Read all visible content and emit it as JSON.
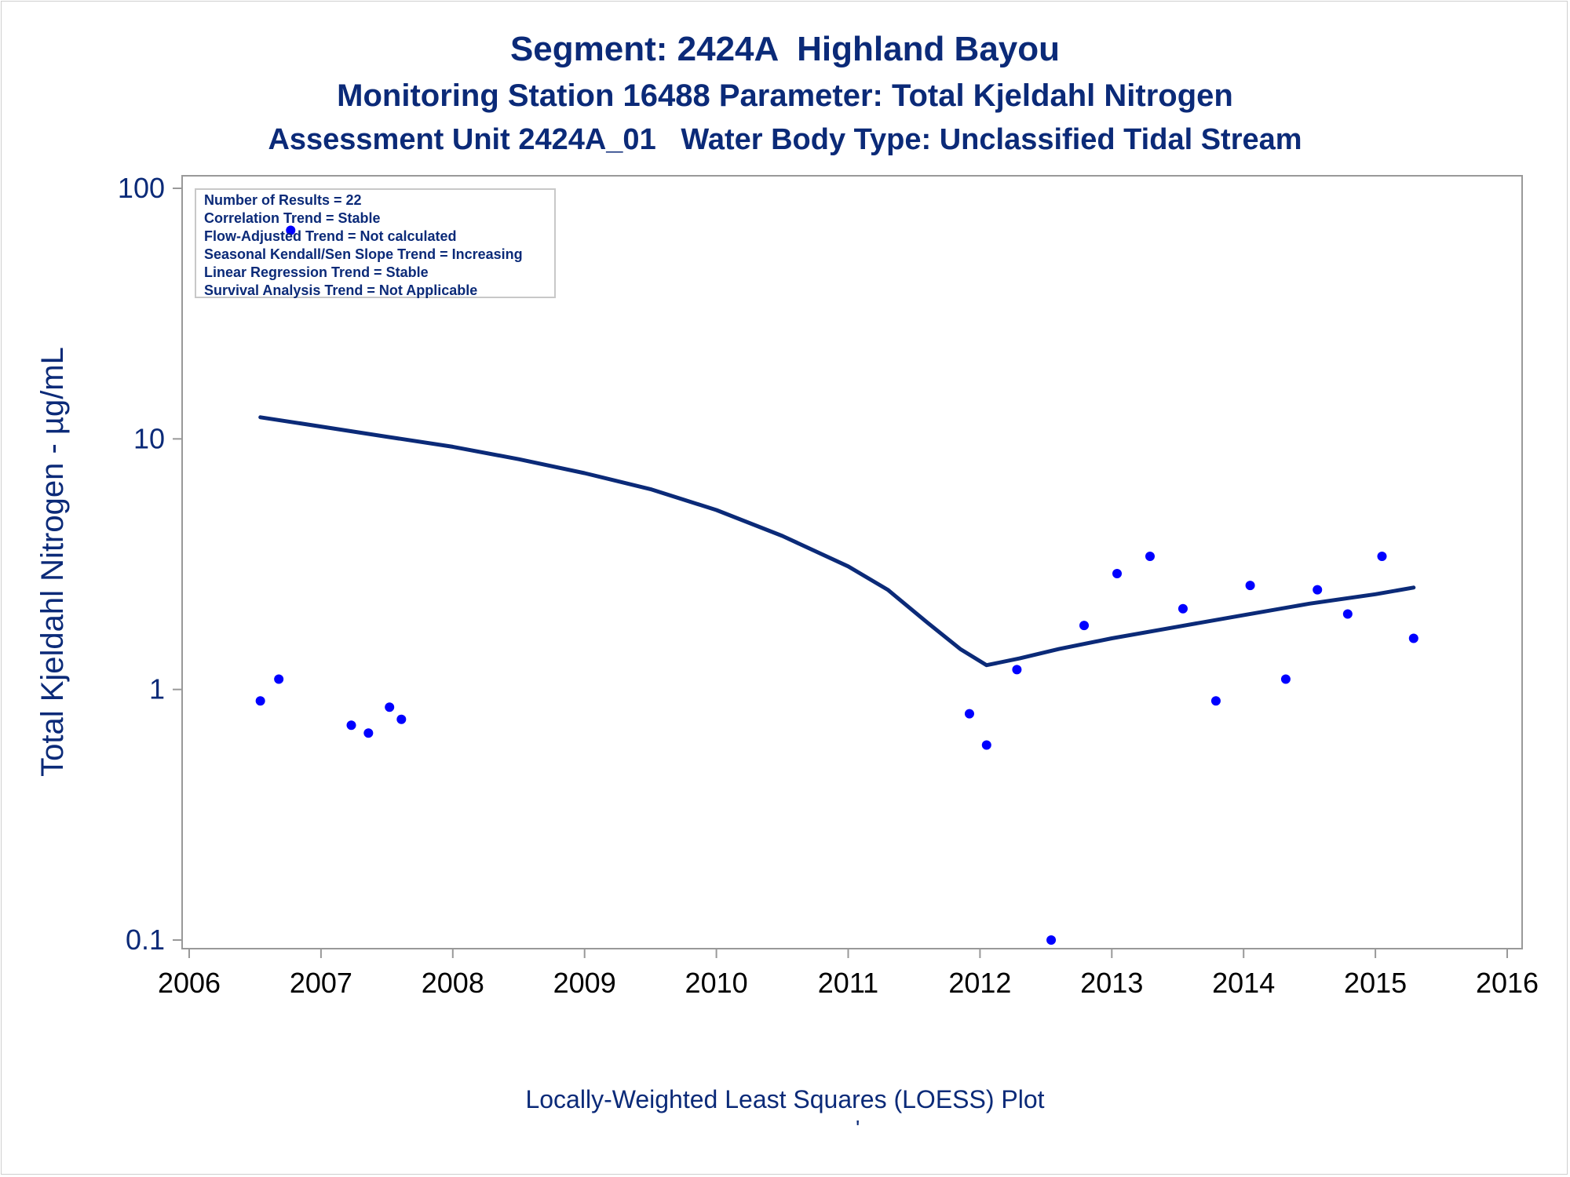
{
  "titles": {
    "line1": "Segment: 2424A  Highland Bayou",
    "line2": "Monitoring Station 16488 Parameter: Total Kjeldahl Nitrogen",
    "line3": "Assessment Unit 2424A_01   Water Body Type: Unclassified Tidal Stream"
  },
  "stats": [
    "Number of Results = 22",
    "Correlation Trend = Stable",
    "Flow-Adjusted Trend = Not calculated",
    "Seasonal Kendall/Sen Slope Trend = Increasing",
    "Linear Regression Trend = Stable",
    "Survival Analysis Trend = Not Applicable"
  ],
  "footnote": "Locally-Weighted Least Squares (LOESS) Plot",
  "footmark": "'",
  "colors": {
    "text": "#0b2a78",
    "points": "#0000ff",
    "curve": "#0b2a78",
    "axis": "#999999"
  },
  "chart_data": {
    "type": "scatter",
    "title": "Segment: 2424A  Highland Bayou",
    "xlabel": "",
    "ylabel": "Total Kjeldahl Nitrogen -  µg/mL",
    "xlim": [
      2006,
      2016
    ],
    "ylim": [
      0.1,
      100
    ],
    "yscale": "log",
    "xticks": [
      2006,
      2007,
      2008,
      2009,
      2010,
      2011,
      2012,
      2013,
      2014,
      2015,
      2016
    ],
    "yticks": [
      0.1,
      1,
      10,
      100
    ],
    "ytick_labels": [
      "0.1",
      "1",
      "10",
      "100"
    ],
    "grid": false,
    "legend": "top-left",
    "series": [
      {
        "kind": "points",
        "x": [
          2006.54,
          2006.68,
          2006.77,
          2007.23,
          2007.36,
          2007.52,
          2007.61,
          2011.92,
          2012.05,
          2012.28,
          2012.54,
          2012.79,
          2013.04,
          2013.29,
          2013.54,
          2013.79,
          2014.05,
          2014.32,
          2014.56,
          2014.79,
          2015.05,
          2015.29
        ],
        "y": [
          0.9,
          1.1,
          68,
          0.72,
          0.67,
          0.85,
          0.76,
          0.8,
          0.6,
          1.2,
          0.1,
          1.8,
          2.9,
          3.4,
          2.1,
          0.9,
          2.6,
          1.1,
          2.5,
          2.0,
          3.4,
          1.6
        ]
      },
      {
        "kind": "loess",
        "x": [
          2006.54,
          2007.0,
          2007.5,
          2008.0,
          2008.5,
          2009.0,
          2009.5,
          2010.0,
          2010.5,
          2011.0,
          2011.3,
          2011.6,
          2011.85,
          2012.05,
          2012.3,
          2012.6,
          2013.0,
          2013.5,
          2014.0,
          2014.5,
          2015.0,
          2015.29
        ],
        "y": [
          12.2,
          11.2,
          10.2,
          9.3,
          8.3,
          7.3,
          6.3,
          5.2,
          4.1,
          3.1,
          2.5,
          1.85,
          1.45,
          1.25,
          1.33,
          1.45,
          1.6,
          1.78,
          1.98,
          2.2,
          2.4,
          2.55
        ]
      }
    ]
  }
}
